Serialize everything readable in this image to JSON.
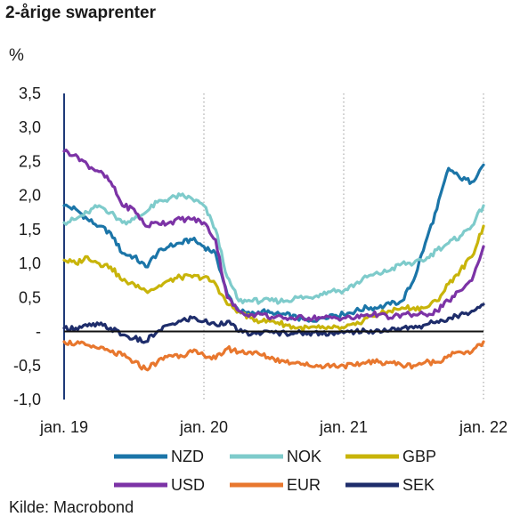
{
  "chart_data": {
    "type": "line",
    "title": "2-årige swaprenter",
    "ylabel": "%",
    "source": "Kilde: Macrobond",
    "ylim": [
      -1.0,
      3.5
    ],
    "yticks": [
      {
        "value": 3.5,
        "label": "3,5"
      },
      {
        "value": 3.0,
        "label": "3,0"
      },
      {
        "value": 2.5,
        "label": "2,5"
      },
      {
        "value": 2.0,
        "label": "2,0"
      },
      {
        "value": 1.5,
        "label": "1,5"
      },
      {
        "value": 1.0,
        "label": "1,0"
      },
      {
        "value": 0.5,
        "label": "0,5"
      },
      {
        "value": 0.0,
        "label": "-"
      },
      {
        "value": -0.5,
        "label": "-0,5"
      },
      {
        "value": -1.0,
        "label": "-1,0"
      }
    ],
    "xlim": [
      "2019-01",
      "2022-01"
    ],
    "xticks": [
      {
        "value": "2019-01",
        "label": "jan. 19"
      },
      {
        "value": "2020-01",
        "label": "jan. 20"
      },
      {
        "value": "2021-01",
        "label": "jan. 21"
      },
      {
        "value": "2022-01",
        "label": "jan. 22"
      }
    ],
    "grid": "vertical dotted at year marks",
    "legend": "bottom",
    "series": [
      {
        "name": "NZD",
        "color": "#1b75a8",
        "x": [
          "2019-01",
          "2019-02",
          "2019-03",
          "2019-04",
          "2019-05",
          "2019-06",
          "2019-07",
          "2019-08",
          "2019-09",
          "2019-10",
          "2019-11",
          "2019-12",
          "2020-01",
          "2020-02",
          "2020-03",
          "2020-04",
          "2020-05",
          "2020-06",
          "2020-07",
          "2020-08",
          "2020-09",
          "2020-10",
          "2020-11",
          "2020-12",
          "2021-01",
          "2021-02",
          "2021-03",
          "2021-04",
          "2021-05",
          "2021-06",
          "2021-07",
          "2021-08",
          "2021-09",
          "2021-10",
          "2021-11",
          "2021-12",
          "2022-01"
        ],
        "y": [
          1.85,
          1.8,
          1.65,
          1.55,
          1.45,
          1.15,
          1.1,
          0.95,
          1.15,
          1.25,
          1.3,
          1.35,
          1.25,
          1.15,
          0.55,
          0.3,
          0.25,
          0.3,
          0.25,
          0.25,
          0.2,
          0.15,
          0.2,
          0.25,
          0.25,
          0.3,
          0.35,
          0.35,
          0.4,
          0.45,
          0.75,
          1.3,
          1.8,
          2.4,
          2.25,
          2.2,
          2.45
        ]
      },
      {
        "name": "NOK",
        "color": "#7ecbcb",
        "x": [
          "2019-01",
          "2019-02",
          "2019-03",
          "2019-04",
          "2019-05",
          "2019-06",
          "2019-07",
          "2019-08",
          "2019-09",
          "2019-10",
          "2019-11",
          "2019-12",
          "2020-01",
          "2020-02",
          "2020-03",
          "2020-04",
          "2020-05",
          "2020-06",
          "2020-07",
          "2020-08",
          "2020-09",
          "2020-10",
          "2020-11",
          "2020-12",
          "2021-01",
          "2021-02",
          "2021-03",
          "2021-04",
          "2021-05",
          "2021-06",
          "2021-07",
          "2021-08",
          "2021-09",
          "2021-10",
          "2021-11",
          "2021-12",
          "2022-01"
        ],
        "y": [
          1.6,
          1.65,
          1.75,
          1.85,
          1.75,
          1.6,
          1.65,
          1.75,
          1.9,
          1.95,
          2.0,
          1.95,
          1.85,
          1.5,
          0.8,
          0.45,
          0.45,
          0.45,
          0.45,
          0.45,
          0.5,
          0.5,
          0.55,
          0.6,
          0.6,
          0.7,
          0.8,
          0.85,
          0.9,
          1.0,
          1.0,
          1.05,
          1.2,
          1.3,
          1.4,
          1.55,
          1.85
        ]
      },
      {
        "name": "GBP",
        "color": "#c8b40a",
        "x": [
          "2019-01",
          "2019-02",
          "2019-03",
          "2019-04",
          "2019-05",
          "2019-06",
          "2019-07",
          "2019-08",
          "2019-09",
          "2019-10",
          "2019-11",
          "2019-12",
          "2020-01",
          "2020-02",
          "2020-03",
          "2020-04",
          "2020-05",
          "2020-06",
          "2020-07",
          "2020-08",
          "2020-09",
          "2020-10",
          "2020-11",
          "2020-12",
          "2021-01",
          "2021-02",
          "2021-03",
          "2021-04",
          "2021-05",
          "2021-06",
          "2021-07",
          "2021-08",
          "2021-09",
          "2021-10",
          "2021-11",
          "2021-12",
          "2022-01"
        ],
        "y": [
          1.05,
          1.0,
          1.1,
          1.0,
          0.95,
          0.75,
          0.7,
          0.6,
          0.65,
          0.75,
          0.8,
          0.8,
          0.8,
          0.7,
          0.4,
          0.3,
          0.2,
          0.15,
          0.15,
          0.1,
          0.05,
          0.05,
          0.05,
          0.05,
          0.05,
          0.1,
          0.2,
          0.25,
          0.3,
          0.35,
          0.35,
          0.35,
          0.45,
          0.7,
          0.9,
          1.1,
          1.55
        ]
      },
      {
        "name": "USD",
        "color": "#7c33a6",
        "x": [
          "2019-01",
          "2019-02",
          "2019-03",
          "2019-04",
          "2019-05",
          "2019-06",
          "2019-07",
          "2019-08",
          "2019-09",
          "2019-10",
          "2019-11",
          "2019-12",
          "2020-01",
          "2020-02",
          "2020-03",
          "2020-04",
          "2020-05",
          "2020-06",
          "2020-07",
          "2020-08",
          "2020-09",
          "2020-10",
          "2020-11",
          "2020-12",
          "2021-01",
          "2021-02",
          "2021-03",
          "2021-04",
          "2021-05",
          "2021-06",
          "2021-07",
          "2021-08",
          "2021-09",
          "2021-10",
          "2021-11",
          "2021-12",
          "2022-01"
        ],
        "y": [
          2.65,
          2.6,
          2.45,
          2.35,
          2.2,
          1.85,
          1.8,
          1.55,
          1.6,
          1.6,
          1.65,
          1.65,
          1.6,
          1.35,
          0.5,
          0.3,
          0.25,
          0.25,
          0.2,
          0.2,
          0.2,
          0.2,
          0.2,
          0.2,
          0.2,
          0.2,
          0.25,
          0.25,
          0.2,
          0.25,
          0.25,
          0.25,
          0.3,
          0.45,
          0.6,
          0.75,
          1.25
        ]
      },
      {
        "name": "EUR",
        "color": "#e8772e",
        "x": [
          "2019-01",
          "2019-02",
          "2019-03",
          "2019-04",
          "2019-05",
          "2019-06",
          "2019-07",
          "2019-08",
          "2019-09",
          "2019-10",
          "2019-11",
          "2019-12",
          "2020-01",
          "2020-02",
          "2020-03",
          "2020-04",
          "2020-05",
          "2020-06",
          "2020-07",
          "2020-08",
          "2020-09",
          "2020-10",
          "2020-11",
          "2020-12",
          "2021-01",
          "2021-02",
          "2021-03",
          "2021-04",
          "2021-05",
          "2021-06",
          "2021-07",
          "2021-08",
          "2021-09",
          "2021-10",
          "2021-11",
          "2021-12",
          "2022-01"
        ],
        "y": [
          -0.15,
          -0.18,
          -0.2,
          -0.25,
          -0.3,
          -0.35,
          -0.45,
          -0.55,
          -0.45,
          -0.35,
          -0.35,
          -0.3,
          -0.35,
          -0.4,
          -0.25,
          -0.3,
          -0.3,
          -0.35,
          -0.4,
          -0.45,
          -0.45,
          -0.5,
          -0.5,
          -0.5,
          -0.5,
          -0.5,
          -0.45,
          -0.45,
          -0.45,
          -0.5,
          -0.5,
          -0.45,
          -0.45,
          -0.35,
          -0.3,
          -0.3,
          -0.15
        ]
      },
      {
        "name": "SEK",
        "color": "#1e2d6b",
        "x": [
          "2019-01",
          "2019-02",
          "2019-03",
          "2019-04",
          "2019-05",
          "2019-06",
          "2019-07",
          "2019-08",
          "2019-09",
          "2019-10",
          "2019-11",
          "2019-12",
          "2020-01",
          "2020-02",
          "2020-03",
          "2020-04",
          "2020-05",
          "2020-06",
          "2020-07",
          "2020-08",
          "2020-09",
          "2020-10",
          "2020-11",
          "2020-12",
          "2021-01",
          "2021-02",
          "2021-03",
          "2021-04",
          "2021-05",
          "2021-06",
          "2021-07",
          "2021-08",
          "2021-09",
          "2021-10",
          "2021-11",
          "2021-12",
          "2022-01"
        ],
        "y": [
          0.05,
          0.05,
          0.08,
          0.1,
          0.05,
          -0.05,
          -0.1,
          -0.15,
          0.0,
          0.1,
          0.15,
          0.2,
          0.15,
          0.1,
          0.15,
          0.0,
          -0.05,
          -0.02,
          -0.02,
          -0.02,
          -0.02,
          -0.02,
          -0.02,
          -0.02,
          -0.02,
          0.0,
          0.0,
          0.02,
          0.02,
          0.05,
          0.05,
          0.1,
          0.15,
          0.2,
          0.25,
          0.3,
          0.4
        ]
      }
    ]
  }
}
